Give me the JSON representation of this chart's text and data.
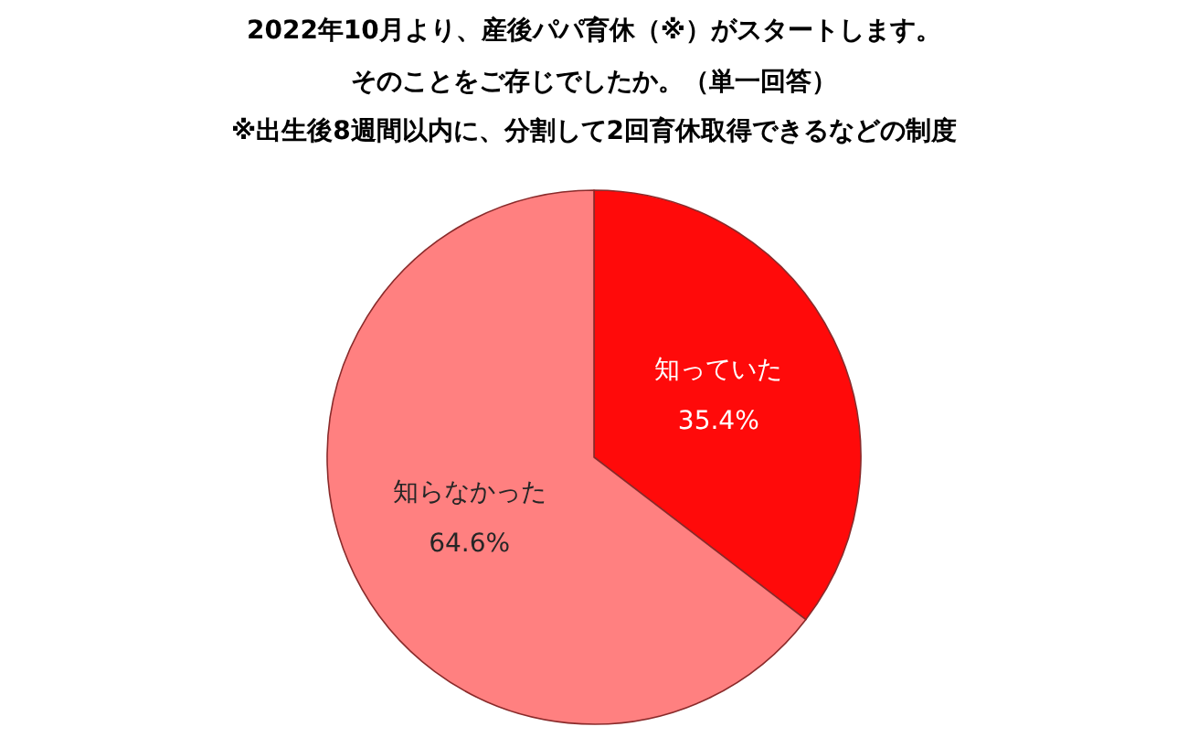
{
  "chart_data": {
    "type": "pie",
    "title": "2022年10月より、産後パパ育休（※）がスタートします。",
    "subtitle": "そのことをご存じでしたか。（単一回答）",
    "annotations": [
      "※出生後8週間以内に、分割して2回育休取得できるなどの制度"
    ],
    "categories": [
      "知っていた",
      "知らなかった"
    ],
    "values": [
      35.4,
      64.6
    ],
    "value_labels": [
      "35.4%",
      "64.6%"
    ],
    "colors": [
      "#ff0a0a",
      "#ff8080"
    ],
    "legend": false
  }
}
